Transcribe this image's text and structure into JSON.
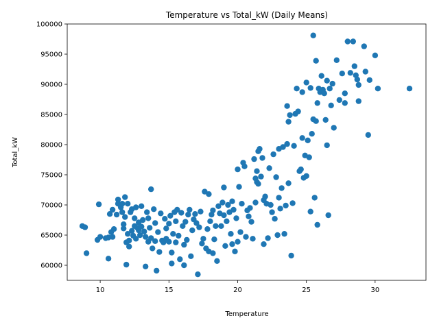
{
  "chart_data": {
    "type": "scatter",
    "title": "Temperature vs Total_kW (Daily Means)",
    "xlabel": "Temperature",
    "ylabel": "Total_kW",
    "xlim": [
      7.6,
      33.7
    ],
    "ylim": [
      57500,
      100000
    ],
    "x_ticks": [
      10,
      15,
      20,
      25,
      30
    ],
    "y_ticks": [
      60000,
      65000,
      70000,
      75000,
      80000,
      85000,
      90000,
      95000,
      100000
    ],
    "grid": false,
    "legend": "none",
    "marker_color": "#1f77b4",
    "series": [
      {
        "points": [
          [
            8.7,
            66500
          ],
          [
            8.9,
            66300
          ],
          [
            9.0,
            62000
          ],
          [
            9.8,
            64200
          ],
          [
            10.0,
            64700
          ],
          [
            9.9,
            70100
          ],
          [
            10.4,
            64500
          ],
          [
            10.6,
            64600
          ],
          [
            10.6,
            61100
          ],
          [
            10.8,
            65500
          ],
          [
            10.9,
            64700
          ],
          [
            10.7,
            68500
          ],
          [
            10.9,
            69200
          ],
          [
            11.0,
            66000
          ],
          [
            11.2,
            68400
          ],
          [
            11.3,
            70900
          ],
          [
            11.3,
            70200
          ],
          [
            11.5,
            69600
          ],
          [
            11.6,
            70200
          ],
          [
            11.6,
            68800
          ],
          [
            11.7,
            66800
          ],
          [
            11.7,
            66100
          ],
          [
            11.8,
            71300
          ],
          [
            11.8,
            68000
          ],
          [
            11.9,
            60100
          ],
          [
            11.9,
            63800
          ],
          [
            12.0,
            70200
          ],
          [
            12.0,
            65200
          ],
          [
            12.1,
            64100
          ],
          [
            12.1,
            63100
          ],
          [
            12.2,
            68800
          ],
          [
            12.3,
            69300
          ],
          [
            12.3,
            65700
          ],
          [
            12.4,
            64900
          ],
          [
            12.5,
            66500
          ],
          [
            12.5,
            67800
          ],
          [
            12.6,
            64400
          ],
          [
            12.6,
            69600
          ],
          [
            12.7,
            66200
          ],
          [
            12.8,
            67100
          ],
          [
            12.8,
            65800
          ],
          [
            12.9,
            65000
          ],
          [
            13.0,
            69800
          ],
          [
            13.0,
            66400
          ],
          [
            13.1,
            67500
          ],
          [
            13.2,
            65600
          ],
          [
            13.3,
            64700
          ],
          [
            13.3,
            59800
          ],
          [
            13.4,
            68800
          ],
          [
            13.5,
            63900
          ],
          [
            13.5,
            67800
          ],
          [
            13.6,
            66200
          ],
          [
            13.7,
            72600
          ],
          [
            13.7,
            64500
          ],
          [
            13.8,
            62800
          ],
          [
            13.9,
            69300
          ],
          [
            14.0,
            64000
          ],
          [
            14.0,
            67000
          ],
          [
            14.1,
            59100
          ],
          [
            14.2,
            65500
          ],
          [
            14.3,
            62200
          ],
          [
            14.4,
            68600
          ],
          [
            14.5,
            64100
          ],
          [
            14.6,
            63800
          ],
          [
            14.7,
            67700
          ],
          [
            14.8,
            64400
          ],
          [
            14.8,
            66100
          ],
          [
            15.0,
            63900
          ],
          [
            15.0,
            66900
          ],
          [
            15.1,
            68200
          ],
          [
            15.2,
            60300
          ],
          [
            15.2,
            62100
          ],
          [
            15.3,
            65200
          ],
          [
            15.4,
            68800
          ],
          [
            15.5,
            67300
          ],
          [
            15.5,
            63800
          ],
          [
            15.6,
            69200
          ],
          [
            15.7,
            64900
          ],
          [
            15.8,
            61000
          ],
          [
            15.9,
            68700
          ],
          [
            16.0,
            66500
          ],
          [
            16.1,
            63400
          ],
          [
            16.1,
            60000
          ],
          [
            16.2,
            67200
          ],
          [
            16.3,
            64200
          ],
          [
            16.4,
            68400
          ],
          [
            16.5,
            69200
          ],
          [
            16.6,
            61500
          ],
          [
            16.7,
            65800
          ],
          [
            16.8,
            67600
          ],
          [
            16.9,
            68500
          ],
          [
            17.0,
            67000
          ],
          [
            17.1,
            58500
          ],
          [
            17.2,
            66300
          ],
          [
            17.3,
            68900
          ],
          [
            17.4,
            63600
          ],
          [
            17.5,
            64400
          ],
          [
            17.6,
            72200
          ],
          [
            17.7,
            62800
          ],
          [
            17.8,
            66000
          ],
          [
            17.9,
            71800
          ],
          [
            17.9,
            62300
          ],
          [
            18.0,
            67300
          ],
          [
            18.1,
            68400
          ],
          [
            18.2,
            69100
          ],
          [
            18.2,
            62000
          ],
          [
            18.3,
            64300
          ],
          [
            18.4,
            66500
          ],
          [
            18.5,
            60700
          ],
          [
            18.6,
            69800
          ],
          [
            18.7,
            68600
          ],
          [
            18.8,
            66500
          ],
          [
            18.9,
            70400
          ],
          [
            19.0,
            68300
          ],
          [
            19.0,
            72900
          ],
          [
            19.1,
            63200
          ],
          [
            19.2,
            67300
          ],
          [
            19.3,
            70000
          ],
          [
            19.4,
            68800
          ],
          [
            19.5,
            65200
          ],
          [
            19.6,
            70600
          ],
          [
            19.6,
            63500
          ],
          [
            19.7,
            69200
          ],
          [
            19.8,
            62300
          ],
          [
            19.9,
            67800
          ],
          [
            20.0,
            63900
          ],
          [
            20.0,
            75900
          ],
          [
            20.1,
            73000
          ],
          [
            20.2,
            65500
          ],
          [
            20.3,
            70200
          ],
          [
            20.4,
            77000
          ],
          [
            20.5,
            76400
          ],
          [
            20.6,
            64700
          ],
          [
            20.7,
            69100
          ],
          [
            20.8,
            68100
          ],
          [
            20.9,
            69500
          ],
          [
            21.0,
            67200
          ],
          [
            21.1,
            64400
          ],
          [
            21.2,
            77600
          ],
          [
            21.3,
            70400
          ],
          [
            21.3,
            74400
          ],
          [
            21.4,
            75600
          ],
          [
            21.4,
            73800
          ],
          [
            21.5,
            78900
          ],
          [
            21.5,
            73500
          ],
          [
            21.6,
            79300
          ],
          [
            21.7,
            74700
          ],
          [
            21.8,
            77800
          ],
          [
            21.9,
            70800
          ],
          [
            21.9,
            63500
          ],
          [
            22.0,
            71400
          ],
          [
            22.1,
            70200
          ],
          [
            22.2,
            64500
          ],
          [
            22.3,
            76100
          ],
          [
            22.4,
            70000
          ],
          [
            22.5,
            68800
          ],
          [
            22.6,
            78400
          ],
          [
            22.7,
            67700
          ],
          [
            22.8,
            74600
          ],
          [
            22.9,
            65000
          ],
          [
            23.0,
            79300
          ],
          [
            23.0,
            71200
          ],
          [
            23.1,
            69400
          ],
          [
            23.2,
            72800
          ],
          [
            23.3,
            79600
          ],
          [
            23.4,
            65200
          ],
          [
            23.5,
            69900
          ],
          [
            23.6,
            80100
          ],
          [
            23.6,
            86400
          ],
          [
            23.7,
            73600
          ],
          [
            23.7,
            83800
          ],
          [
            23.8,
            84900
          ],
          [
            23.9,
            61600
          ],
          [
            24.0,
            70300
          ],
          [
            24.1,
            79800
          ],
          [
            24.2,
            85100
          ],
          [
            24.3,
            89300
          ],
          [
            24.4,
            85500
          ],
          [
            24.5,
            75600
          ],
          [
            24.6,
            75900
          ],
          [
            24.7,
            88700
          ],
          [
            24.7,
            81100
          ],
          [
            24.8,
            74500
          ],
          [
            24.9,
            78200
          ],
          [
            25.0,
            74800
          ],
          [
            25.0,
            90300
          ],
          [
            25.1,
            80700
          ],
          [
            25.2,
            77900
          ],
          [
            25.3,
            89400
          ],
          [
            25.3,
            68900
          ],
          [
            25.4,
            81800
          ],
          [
            25.5,
            98100
          ],
          [
            25.5,
            84200
          ],
          [
            25.6,
            71200
          ],
          [
            25.7,
            83900
          ],
          [
            25.7,
            93900
          ],
          [
            25.8,
            86900
          ],
          [
            25.8,
            66700
          ],
          [
            25.9,
            89300
          ],
          [
            26.0,
            88700
          ],
          [
            26.1,
            91400
          ],
          [
            26.2,
            89100
          ],
          [
            26.3,
            88500
          ],
          [
            26.4,
            84100
          ],
          [
            26.5,
            90600
          ],
          [
            26.5,
            79900
          ],
          [
            26.6,
            68300
          ],
          [
            26.7,
            89300
          ],
          [
            26.8,
            86500
          ],
          [
            26.9,
            90100
          ],
          [
            27.0,
            82800
          ],
          [
            27.2,
            94000
          ],
          [
            27.4,
            87400
          ],
          [
            27.6,
            91800
          ],
          [
            27.8,
            88500
          ],
          [
            27.8,
            86900
          ],
          [
            28.0,
            97100
          ],
          [
            28.2,
            91900
          ],
          [
            28.4,
            97100
          ],
          [
            28.5,
            93000
          ],
          [
            28.6,
            91500
          ],
          [
            28.7,
            90800
          ],
          [
            28.8,
            87200
          ],
          [
            28.8,
            89900
          ],
          [
            29.2,
            96300
          ],
          [
            29.3,
            92100
          ],
          [
            29.5,
            81600
          ],
          [
            29.6,
            90700
          ],
          [
            30.0,
            94800
          ],
          [
            30.2,
            89300
          ],
          [
            32.5,
            89300
          ]
        ]
      }
    ]
  }
}
